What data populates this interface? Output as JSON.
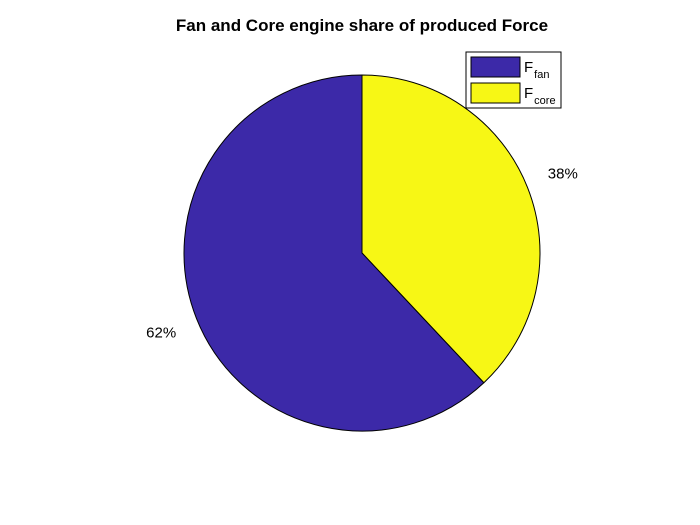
{
  "chart_data": {
    "type": "pie",
    "title": "Fan and Core engine share of produced Force",
    "slices": [
      {
        "value": 38,
        "label": "38%",
        "color": "#f7f715",
        "legend_base": "F",
        "legend_sub": "core"
      },
      {
        "value": 62,
        "label": "62%",
        "color": "#3c29a8",
        "legend_base": "F",
        "legend_sub": "fan"
      }
    ],
    "legend_order": [
      1,
      0
    ],
    "legend_placement": "top-right",
    "start_angle": "12 o'clock",
    "direction": "clockwise"
  }
}
